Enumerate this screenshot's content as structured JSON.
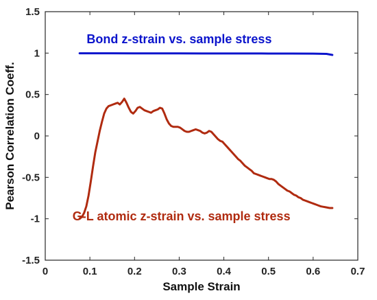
{
  "chart_data": {
    "type": "line",
    "title": "",
    "xlabel": "Sample Strain",
    "ylabel": "Pearson Correlation Coeff.",
    "xlim": [
      0,
      0.7
    ],
    "ylim": [
      -1.5,
      1.5
    ],
    "xticks": [
      0,
      0.1,
      0.2,
      0.3,
      0.4,
      0.5,
      0.6,
      0.7
    ],
    "xtick_labels": [
      "0",
      "0.1",
      "0.2",
      "0.3",
      "0.4",
      "0.5",
      "0.6",
      "0.7"
    ],
    "yticks": [
      -1.5,
      -1,
      -0.5,
      0,
      0.5,
      1,
      1.5
    ],
    "ytick_labels": [
      "-1.5",
      "-1",
      "-0.5",
      "0",
      "0.5",
      "1",
      "1.5"
    ],
    "grid": false,
    "legend": "none",
    "series": [
      {
        "name": "Bond z-strain vs. sample stress",
        "color": "#0b14cc",
        "x": [
          0.077,
          0.1,
          0.15,
          0.2,
          0.25,
          0.3,
          0.35,
          0.4,
          0.45,
          0.5,
          0.55,
          0.6,
          0.63,
          0.643
        ],
        "y": [
          0.998,
          0.998,
          0.998,
          0.997,
          0.997,
          0.997,
          0.996,
          0.996,
          0.996,
          0.995,
          0.994,
          0.993,
          0.99,
          0.978
        ]
      },
      {
        "name": "G-L atomic z-strain vs. sample stress",
        "color": "#b02b10",
        "x": [
          0.077,
          0.082,
          0.087,
          0.092,
          0.097,
          0.102,
          0.107,
          0.112,
          0.117,
          0.122,
          0.127,
          0.132,
          0.137,
          0.142,
          0.147,
          0.152,
          0.157,
          0.162,
          0.167,
          0.172,
          0.177,
          0.182,
          0.187,
          0.192,
          0.197,
          0.202,
          0.207,
          0.212,
          0.217,
          0.222,
          0.227,
          0.232,
          0.237,
          0.242,
          0.247,
          0.252,
          0.257,
          0.262,
          0.267,
          0.272,
          0.277,
          0.282,
          0.287,
          0.292,
          0.297,
          0.302,
          0.307,
          0.312,
          0.317,
          0.322,
          0.327,
          0.332,
          0.337,
          0.342,
          0.347,
          0.352,
          0.357,
          0.362,
          0.367,
          0.372,
          0.377,
          0.382,
          0.387,
          0.392,
          0.397,
          0.402,
          0.407,
          0.412,
          0.417,
          0.422,
          0.427,
          0.432,
          0.437,
          0.442,
          0.447,
          0.452,
          0.457,
          0.462,
          0.467,
          0.472,
          0.477,
          0.482,
          0.487,
          0.492,
          0.497,
          0.502,
          0.507,
          0.512,
          0.517,
          0.522,
          0.527,
          0.532,
          0.537,
          0.542,
          0.547,
          0.552,
          0.557,
          0.562,
          0.567,
          0.572,
          0.577,
          0.582,
          0.587,
          0.592,
          0.597,
          0.602,
          0.607,
          0.612,
          0.617,
          0.622,
          0.627,
          0.632,
          0.637,
          0.643
        ],
        "y": [
          -0.995,
          -0.98,
          -0.93,
          -0.85,
          -0.72,
          -0.55,
          -0.37,
          -0.2,
          -0.07,
          0.06,
          0.17,
          0.27,
          0.33,
          0.36,
          0.37,
          0.38,
          0.39,
          0.4,
          0.38,
          0.41,
          0.45,
          0.4,
          0.34,
          0.29,
          0.27,
          0.3,
          0.34,
          0.35,
          0.33,
          0.31,
          0.3,
          0.29,
          0.28,
          0.3,
          0.31,
          0.32,
          0.34,
          0.33,
          0.27,
          0.2,
          0.15,
          0.12,
          0.11,
          0.11,
          0.11,
          0.1,
          0.08,
          0.06,
          0.05,
          0.05,
          0.06,
          0.07,
          0.08,
          0.07,
          0.06,
          0.04,
          0.03,
          0.04,
          0.06,
          0.05,
          0.02,
          -0.01,
          -0.04,
          -0.06,
          -0.07,
          -0.1,
          -0.13,
          -0.16,
          -0.19,
          -0.22,
          -0.25,
          -0.28,
          -0.3,
          -0.33,
          -0.36,
          -0.38,
          -0.4,
          -0.42,
          -0.45,
          -0.46,
          -0.47,
          -0.48,
          -0.49,
          -0.5,
          -0.51,
          -0.52,
          -0.52,
          -0.53,
          -0.55,
          -0.58,
          -0.6,
          -0.62,
          -0.64,
          -0.66,
          -0.67,
          -0.69,
          -0.71,
          -0.72,
          -0.74,
          -0.75,
          -0.77,
          -0.78,
          -0.79,
          -0.8,
          -0.81,
          -0.82,
          -0.83,
          -0.84,
          -0.85,
          -0.855,
          -0.86,
          -0.865,
          -0.87,
          -0.87
        ]
      }
    ],
    "annotations": [
      {
        "text": "Bond z-strain vs. sample stress",
        "x": 0.3,
        "y": 1.12,
        "color": "#0b14cc"
      },
      {
        "text": "G-L atomic z-strain vs. sample stress",
        "x": 0.305,
        "y": -1.02,
        "color": "#b02b10"
      }
    ]
  }
}
